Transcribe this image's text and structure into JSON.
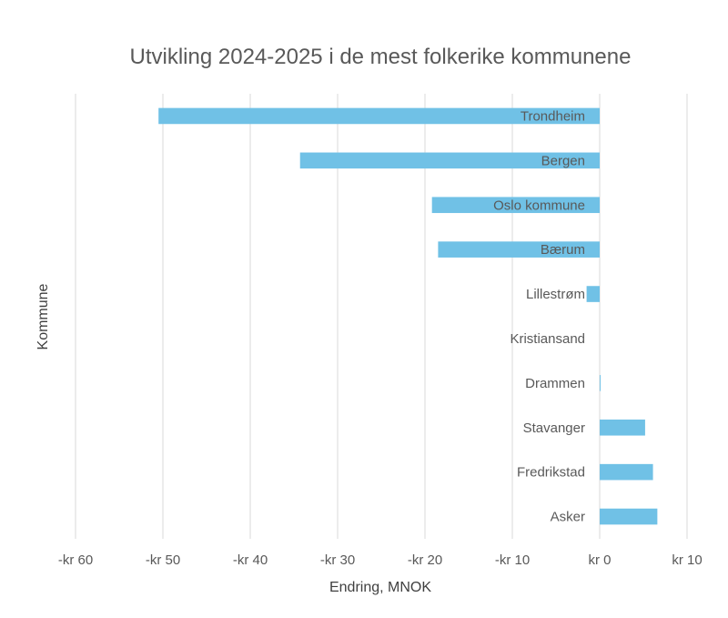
{
  "chart_data": {
    "type": "bar",
    "orientation": "horizontal",
    "title": "Utvikling 2024-2025 i de mest folkerike kommunene",
    "xlabel": "Endring, MNOK",
    "ylabel": "Kommune",
    "categories": [
      "Trondheim",
      "Bergen",
      "Oslo kommune",
      "Bærum",
      "Lillestrøm",
      "Kristiansand",
      "Drammen",
      "Stavanger",
      "Fredrikstad",
      "Asker"
    ],
    "values": [
      -50.5,
      -34.3,
      -19.2,
      -18.5,
      -1.5,
      0,
      0.1,
      5.2,
      6.1,
      6.6
    ],
    "xlim": [
      -60,
      10
    ],
    "x_ticks": [
      -60,
      -50,
      -40,
      -30,
      -20,
      -10,
      0,
      10
    ],
    "x_tick_labels": [
      "-kr 60",
      "-kr 50",
      "-kr 40",
      "-kr 30",
      "-kr 20",
      "-kr 10",
      "kr 0",
      "kr 10"
    ],
    "grid": true,
    "legend": "none",
    "bar_color": "#70c1e6"
  }
}
